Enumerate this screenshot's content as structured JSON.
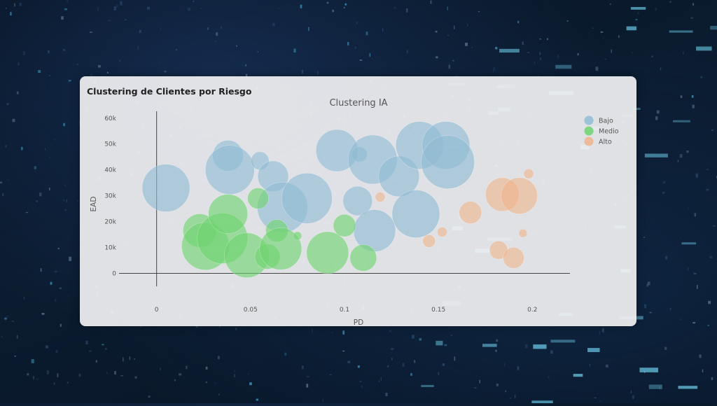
{
  "card": {
    "title": "Clustering de Clientes por Riesgo"
  },
  "chart_data": {
    "type": "scatter",
    "title": "Clustering IA",
    "xlabel": "PD",
    "ylabel": "EAD",
    "xlim": [
      -0.02,
      0.22
    ],
    "ylim": [
      -5000,
      64000
    ],
    "x_ticks": [
      0,
      0.05,
      0.1,
      0.15,
      0.2
    ],
    "x_tick_labels": [
      "0",
      "0.05",
      "0.1",
      "0.15",
      "0.2"
    ],
    "y_ticks": [
      0,
      10000,
      20000,
      30000,
      40000,
      50000,
      60000
    ],
    "y_tick_labels": [
      "0",
      "10k",
      "20k",
      "30k",
      "40k",
      "50k",
      "60k"
    ],
    "grid": true,
    "legend_position": "top-right",
    "bubble_size_encoded": true,
    "series": [
      {
        "name": "Bajo",
        "color": "#8fbcd4",
        "points": [
          {
            "x": 0.005,
            "y": 33000,
            "size": 34
          },
          {
            "x": 0.038,
            "y": 45500,
            "size": 22
          },
          {
            "x": 0.039,
            "y": 40000,
            "size": 35
          },
          {
            "x": 0.055,
            "y": 43500,
            "size": 13
          },
          {
            "x": 0.062,
            "y": 37500,
            "size": 22
          },
          {
            "x": 0.067,
            "y": 25500,
            "size": 36
          },
          {
            "x": 0.08,
            "y": 29000,
            "size": 36
          },
          {
            "x": 0.096,
            "y": 47500,
            "size": 30
          },
          {
            "x": 0.107,
            "y": 28000,
            "size": 21
          },
          {
            "x": 0.108,
            "y": 46000,
            "size": 11
          },
          {
            "x": 0.115,
            "y": 44000,
            "size": 35
          },
          {
            "x": 0.116,
            "y": 16500,
            "size": 30
          },
          {
            "x": 0.129,
            "y": 37500,
            "size": 29
          },
          {
            "x": 0.138,
            "y": 23000,
            "size": 34
          },
          {
            "x": 0.14,
            "y": 49500,
            "size": 34
          },
          {
            "x": 0.154,
            "y": 49500,
            "size": 34
          },
          {
            "x": 0.155,
            "y": 43000,
            "size": 38
          }
        ]
      },
      {
        "name": "Medio",
        "color": "#6fd36f",
        "points": [
          {
            "x": 0.023,
            "y": 16500,
            "size": 24
          },
          {
            "x": 0.026,
            "y": 10500,
            "size": 34
          },
          {
            "x": 0.035,
            "y": 13500,
            "size": 36
          },
          {
            "x": 0.038,
            "y": 23000,
            "size": 28
          },
          {
            "x": 0.048,
            "y": 7000,
            "size": 32
          },
          {
            "x": 0.054,
            "y": 29000,
            "size": 15
          },
          {
            "x": 0.059,
            "y": 6500,
            "size": 18
          },
          {
            "x": 0.064,
            "y": 16500,
            "size": 16
          },
          {
            "x": 0.066,
            "y": 9500,
            "size": 30
          },
          {
            "x": 0.075,
            "y": 14500,
            "size": 6
          },
          {
            "x": 0.091,
            "y": 8000,
            "size": 30
          },
          {
            "x": 0.1,
            "y": 18500,
            "size": 16
          },
          {
            "x": 0.11,
            "y": 6000,
            "size": 19
          }
        ]
      },
      {
        "name": "Alto",
        "color": "#efb48c",
        "points": [
          {
            "x": 0.119,
            "y": 29500,
            "size": 7
          },
          {
            "x": 0.145,
            "y": 12500,
            "size": 9
          },
          {
            "x": 0.152,
            "y": 16000,
            "size": 7
          },
          {
            "x": 0.167,
            "y": 23500,
            "size": 16
          },
          {
            "x": 0.182,
            "y": 9000,
            "size": 13
          },
          {
            "x": 0.184,
            "y": 30500,
            "size": 24
          },
          {
            "x": 0.19,
            "y": 6000,
            "size": 15
          },
          {
            "x": 0.193,
            "y": 30000,
            "size": 26
          },
          {
            "x": 0.195,
            "y": 15500,
            "size": 6
          },
          {
            "x": 0.198,
            "y": 38500,
            "size": 7
          }
        ]
      }
    ]
  }
}
